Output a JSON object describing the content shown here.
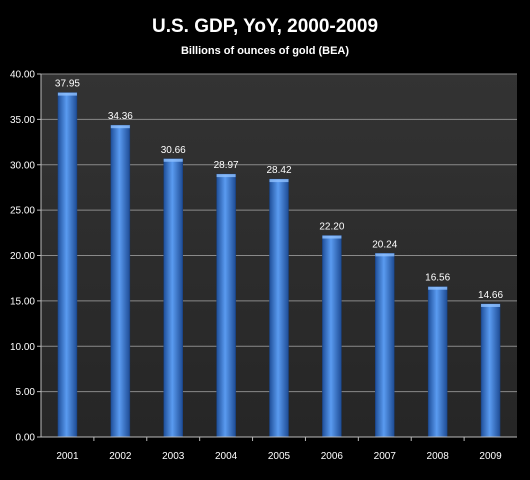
{
  "chart_data": {
    "type": "bar",
    "title": "U.S. GDP, YoY, 2000-2009",
    "subtitle": "Billions of ounces of gold (BEA)",
    "categories": [
      "2001",
      "2002",
      "2003",
      "2004",
      "2005",
      "2006",
      "2007",
      "2008",
      "2009"
    ],
    "values": [
      37.95,
      34.36,
      30.66,
      28.97,
      28.42,
      22.2,
      20.24,
      16.56,
      14.66
    ],
    "data_labels": [
      "37.95",
      "34.36",
      "30.66",
      "28.97",
      "28.42",
      "22.20",
      "20.24",
      "16.56",
      "14.66"
    ],
    "y_ticks": [
      "0.00",
      "5.00",
      "10.00",
      "15.00",
      "20.00",
      "25.00",
      "30.00",
      "35.00",
      "40.00"
    ],
    "ylim": [
      0,
      40
    ],
    "grid": true,
    "legend": "none",
    "colors": {
      "background": "#000000",
      "plot_area": "#2b2b2b",
      "gridline": "#8a8a8a",
      "bar": "#3f7fd6",
      "text": "#ffffff"
    }
  }
}
